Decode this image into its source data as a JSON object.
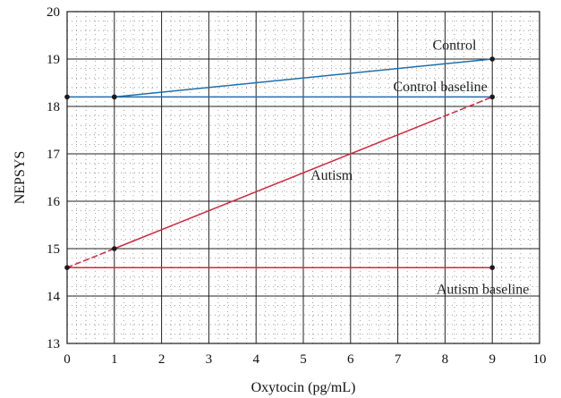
{
  "chart_data": {
    "type": "line",
    "xlabel": "Oxytocin (pg/mL)",
    "ylabel": "NEPSYS",
    "xlim": [
      0,
      10
    ],
    "ylim": [
      13,
      20
    ],
    "xticks": [
      "0",
      "1",
      "2",
      "3",
      "4",
      "5",
      "6",
      "7",
      "8",
      "9",
      "10"
    ],
    "yticks": [
      "13",
      "14",
      "15",
      "16",
      "17",
      "18",
      "19",
      "20"
    ],
    "grid": true,
    "colors": {
      "control": "#1f6fa8",
      "autism": "#d0283c",
      "marker": "#1a1a1a",
      "major_grid": "#222222",
      "minor_grid": "#8a8a8a"
    },
    "series": [
      {
        "name": "Control",
        "color": "#1f6fa8",
        "segments": [
          {
            "x": [
              1,
              9
            ],
            "y": [
              18.2,
              19.0
            ],
            "dash": false
          }
        ],
        "markers": [
          [
            1,
            18.2
          ],
          [
            9,
            19.0
          ]
        ]
      },
      {
        "name": "Control baseline",
        "color": "#1f6fa8",
        "segments": [
          {
            "x": [
              0,
              9
            ],
            "y": [
              18.2,
              18.2
            ],
            "dash": false
          }
        ],
        "markers": [
          [
            0,
            18.2
          ],
          [
            1,
            18.2
          ],
          [
            9,
            18.2
          ]
        ]
      },
      {
        "name": "Autism",
        "color": "#d0283c",
        "segments": [
          {
            "x": [
              0,
              1
            ],
            "y": [
              14.6,
              15.0
            ],
            "dash": true
          },
          {
            "x": [
              1,
              7.8
            ],
            "y": [
              15.0,
              17.72
            ],
            "dash": false
          },
          {
            "x": [
              7.8,
              9
            ],
            "y": [
              17.72,
              18.2
            ],
            "dash": true
          }
        ],
        "markers": [
          [
            1,
            15.0
          ]
        ]
      },
      {
        "name": "Autism baseline",
        "color": "#d0283c",
        "segments": [
          {
            "x": [
              0,
              9
            ],
            "y": [
              14.6,
              14.6
            ],
            "dash": false
          }
        ],
        "markers": [
          [
            0,
            14.6
          ],
          [
            9,
            14.6
          ]
        ]
      }
    ],
    "annotations": [
      {
        "text": "Control",
        "x": 8.2,
        "y": 19.2
      },
      {
        "text": "Control baseline",
        "x": 7.9,
        "y": 18.32
      },
      {
        "text": "Autism",
        "x": 5.6,
        "y": 16.45
      },
      {
        "text": "Autism baseline",
        "x": 8.8,
        "y": 14.05
      }
    ]
  }
}
